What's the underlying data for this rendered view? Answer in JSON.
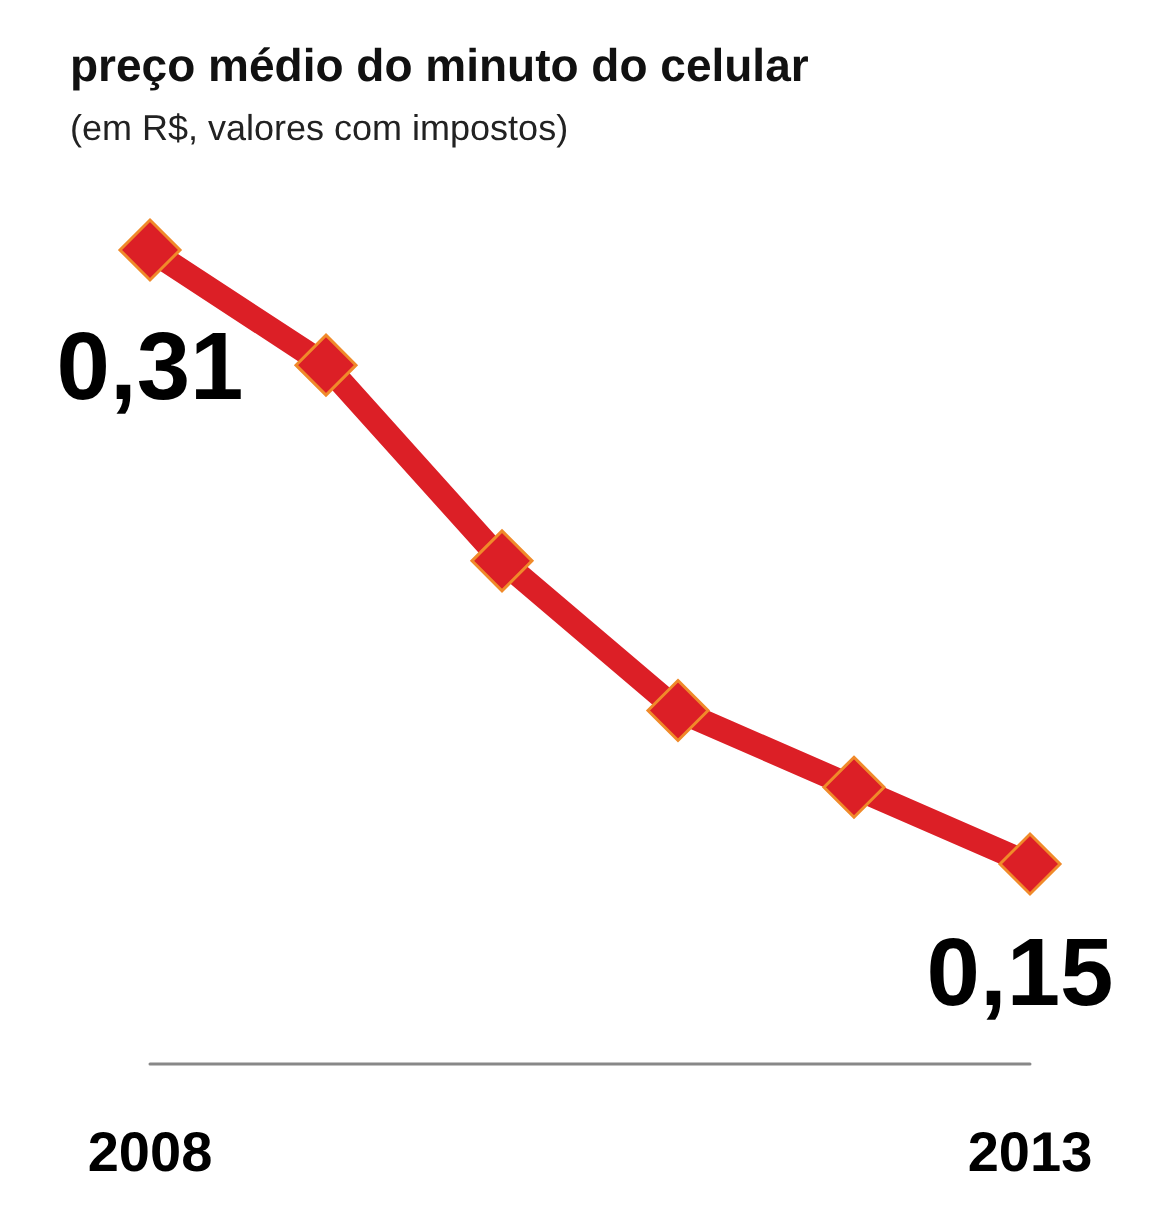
{
  "chart_data": {
    "type": "line",
    "title": "preço médio do minuto do celular",
    "subtitle": "(em R$, valores com impostos)",
    "categories": [
      "2008",
      null,
      null,
      null,
      null,
      "2013"
    ],
    "series": [
      {
        "color": "#dc1f26",
        "values": [
          0.31,
          0.28,
          0.229,
          0.19,
          0.17,
          0.15
        ],
        "value_labels": [
          "0,31",
          null,
          null,
          null,
          null,
          "0,15"
        ]
      }
    ],
    "marker": "diamond",
    "line_style": "solid",
    "tick_labels": "x"
  }
}
